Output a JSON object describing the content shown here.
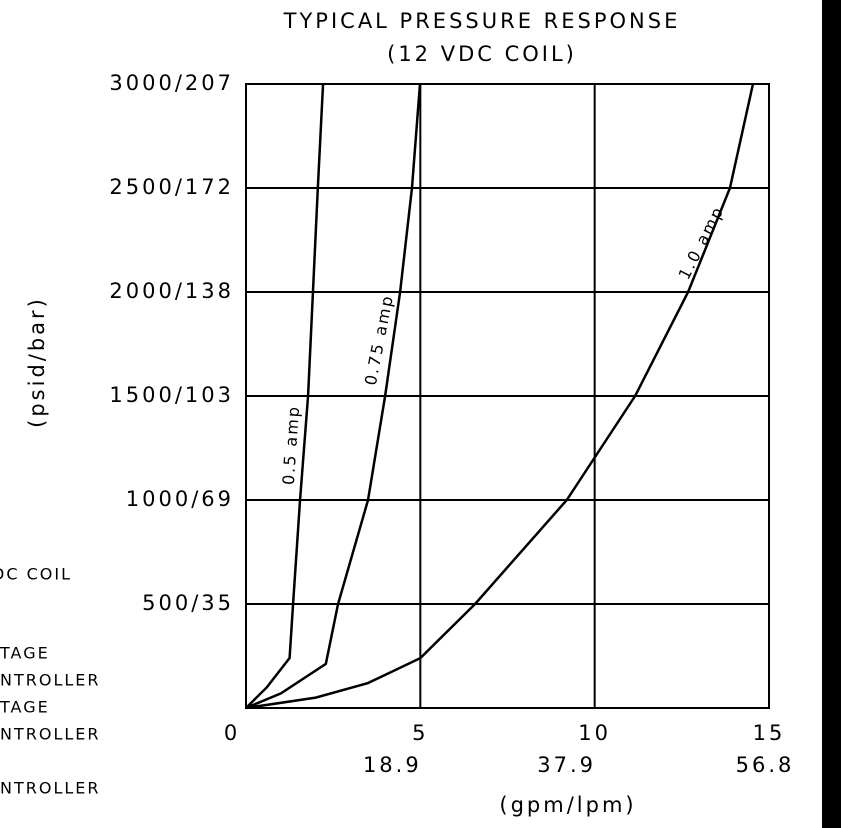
{
  "chart_data": {
    "type": "line",
    "title": "TYPICAL PRESSURE RESPONSE",
    "subtitle": "(12 VDC COIL)",
    "y_label": "(psid/bar)",
    "x_label": "(gpm/lpm)",
    "xlim": [
      0,
      15
    ],
    "ylim": [
      0,
      3000
    ],
    "xticks": [
      0,
      5,
      10,
      15
    ],
    "x2ticks": [
      {
        "value": 5,
        "label": "18.9"
      },
      {
        "value": 10,
        "label": "37.9"
      },
      {
        "value": 15,
        "label": "56.8"
      }
    ],
    "yticks": [
      {
        "value": 500,
        "label": "500/35"
      },
      {
        "value": 1000,
        "label": "1000/69"
      },
      {
        "value": 1500,
        "label": "1500/103"
      },
      {
        "value": 2000,
        "label": "2000/138"
      },
      {
        "value": 2500,
        "label": "2500/172"
      },
      {
        "value": 3000,
        "label": "3000/207"
      }
    ],
    "grid": true,
    "color": "#000000",
    "series": [
      {
        "name": "0.5 amp",
        "x": [
          0,
          0.6,
          1.25,
          1.35,
          1.55,
          1.78,
          2.06,
          2.21
        ],
        "values": [
          0,
          100,
          240,
          500,
          1000,
          1500,
          2500,
          3000
        ]
      },
      {
        "name": "0.75 amp",
        "x": [
          0,
          1.0,
          2.29,
          2.64,
          3.5,
          3.99,
          4.42,
          4.76,
          4.99
        ],
        "values": [
          0,
          70,
          212,
          500,
          1000,
          1500,
          2000,
          2500,
          3000
        ]
      },
      {
        "name": "1.0 amp",
        "x": [
          0,
          2,
          3.5,
          5,
          6.57,
          9.2,
          11.16,
          12.68,
          13.88,
          14.54
        ],
        "values": [
          0,
          50,
          120,
          240,
          500,
          1000,
          1500,
          2000,
          2500,
          3000
        ]
      }
    ],
    "side_notes": [
      "DC COIL",
      "TAGE",
      "NTROLLER",
      "TAGE",
      "NTROLLER",
      "NTROLLER"
    ]
  }
}
